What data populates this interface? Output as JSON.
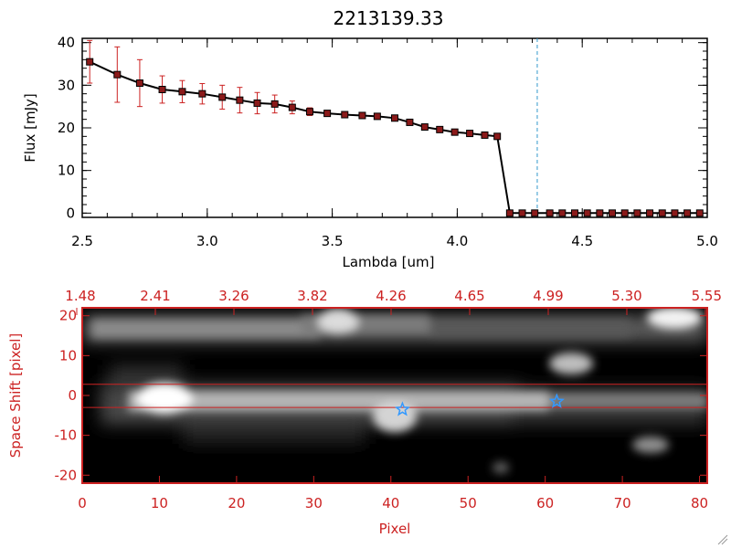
{
  "chart_data": [
    {
      "type": "line",
      "title": "2213139.33",
      "xlabel": "Lambda [um]",
      "ylabel": "Flux [mJy]",
      "xlim": [
        2.5,
        5.0
      ],
      "ylim": [
        -1,
        41
      ],
      "xticks": [
        "2.5",
        "3.0",
        "3.5",
        "4.0",
        "4.5",
        "5.0"
      ],
      "yticks": [
        "0",
        "10",
        "20",
        "30",
        "40"
      ],
      "grid": false,
      "marker": "square",
      "line_color": "#000000",
      "marker_color": "#8b1a1a",
      "errorbar_color": "#cc2222",
      "vline": {
        "x": 4.32,
        "style": "dashed",
        "color": "#3399cc"
      },
      "hline": {
        "y": 0,
        "style": "dashed",
        "color": "#cc2222",
        "from_x": 4.4
      },
      "series": [
        {
          "x": [
            2.53,
            2.64,
            2.73,
            2.82,
            2.9,
            2.98,
            3.06,
            3.13,
            3.2,
            3.27,
            3.34,
            3.41,
            3.48,
            3.55,
            3.62,
            3.68,
            3.75,
            3.81,
            3.87,
            3.93,
            3.99,
            4.05,
            4.11,
            4.16,
            4.21,
            4.26,
            4.31,
            4.37,
            4.42,
            4.47,
            4.52,
            4.57,
            4.62,
            4.67,
            4.72,
            4.77,
            4.82,
            4.87,
            4.92,
            4.97
          ],
          "y": [
            35.5,
            32.5,
            30.5,
            29.0,
            28.5,
            28.0,
            27.2,
            26.5,
            25.8,
            25.6,
            24.8,
            23.8,
            23.4,
            23.1,
            22.9,
            22.7,
            22.3,
            21.3,
            20.2,
            19.6,
            19.0,
            18.7,
            18.3,
            18.0,
            0,
            0,
            0,
            0,
            0,
            0,
            0,
            0,
            0,
            0,
            0,
            0,
            0,
            0,
            0,
            0
          ],
          "yerr": [
            5,
            6.5,
            5.5,
            3.2,
            2.6,
            2.4,
            2.8,
            3.0,
            2.5,
            2.1,
            1.5,
            0.9,
            0.7,
            0.6,
            0.6,
            0.5,
            0.5,
            0.6,
            0.6,
            0.5,
            0.5,
            0.5,
            0.5,
            0.5,
            0,
            0,
            0,
            0,
            0,
            0,
            0,
            0,
            0,
            0,
            0,
            0,
            0,
            0,
            0,
            0
          ]
        }
      ]
    },
    {
      "type": "heatmap",
      "xlabel": "Pixel",
      "ylabel": "Space Shift [pixel]",
      "xlim": [
        0,
        81
      ],
      "ylim": [
        -22,
        22
      ],
      "xticks": [
        "0",
        "10",
        "20",
        "30",
        "40",
        "50",
        "60",
        "70",
        "80"
      ],
      "yticks": [
        "-20",
        "-10",
        "0",
        "10",
        "20"
      ],
      "top_ticks": [
        "1.48",
        "2.41",
        "3.26",
        "3.82",
        "4.26",
        "4.65",
        "4.99",
        "5.30",
        "5.55"
      ],
      "axis_color": "#cc2222",
      "colormap": "grayscale",
      "hlines": [
        {
          "y": 2.8,
          "color": "#cc2222"
        },
        {
          "y": -3.0,
          "color": "#cc2222"
        }
      ],
      "markers": [
        {
          "x": 41.5,
          "y": -3.5,
          "shape": "star",
          "color": "#3399ff"
        },
        {
          "x": 61.5,
          "y": -1.5,
          "shape": "star",
          "color": "#3399ff"
        }
      ]
    }
  ]
}
